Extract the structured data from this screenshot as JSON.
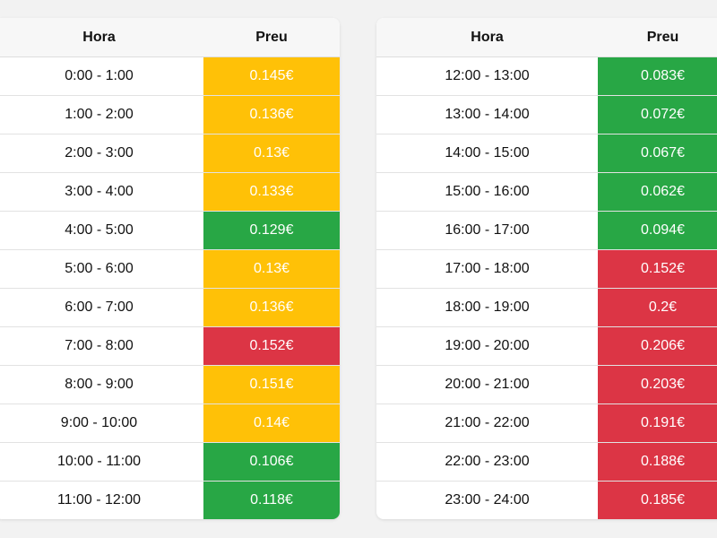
{
  "colors": {
    "low": "#28a745",
    "mid": "#ffc107",
    "high": "#dc3545"
  },
  "tables": [
    {
      "headers": {
        "hour": "Hora",
        "price": "Preu"
      },
      "rows": [
        {
          "hour": "0:00 - 1:00",
          "price": "0.145€",
          "level": "mid"
        },
        {
          "hour": "1:00 - 2:00",
          "price": "0.136€",
          "level": "mid"
        },
        {
          "hour": "2:00 - 3:00",
          "price": "0.13€",
          "level": "mid"
        },
        {
          "hour": "3:00 - 4:00",
          "price": "0.133€",
          "level": "mid"
        },
        {
          "hour": "4:00 - 5:00",
          "price": "0.129€",
          "level": "low"
        },
        {
          "hour": "5:00 - 6:00",
          "price": "0.13€",
          "level": "mid"
        },
        {
          "hour": "6:00 - 7:00",
          "price": "0.136€",
          "level": "mid"
        },
        {
          "hour": "7:00 - 8:00",
          "price": "0.152€",
          "level": "high"
        },
        {
          "hour": "8:00 - 9:00",
          "price": "0.151€",
          "level": "mid"
        },
        {
          "hour": "9:00 - 10:00",
          "price": "0.14€",
          "level": "mid"
        },
        {
          "hour": "10:00 - 11:00",
          "price": "0.106€",
          "level": "low"
        },
        {
          "hour": "11:00 - 12:00",
          "price": "0.118€",
          "level": "low"
        }
      ]
    },
    {
      "headers": {
        "hour": "Hora",
        "price": "Preu"
      },
      "rows": [
        {
          "hour": "12:00 - 13:00",
          "price": "0.083€",
          "level": "low"
        },
        {
          "hour": "13:00 - 14:00",
          "price": "0.072€",
          "level": "low"
        },
        {
          "hour": "14:00 - 15:00",
          "price": "0.067€",
          "level": "low"
        },
        {
          "hour": "15:00 - 16:00",
          "price": "0.062€",
          "level": "low"
        },
        {
          "hour": "16:00 - 17:00",
          "price": "0.094€",
          "level": "low"
        },
        {
          "hour": "17:00 - 18:00",
          "price": "0.152€",
          "level": "high"
        },
        {
          "hour": "18:00 - 19:00",
          "price": "0.2€",
          "level": "high"
        },
        {
          "hour": "19:00 - 20:00",
          "price": "0.206€",
          "level": "high"
        },
        {
          "hour": "20:00 - 21:00",
          "price": "0.203€",
          "level": "high"
        },
        {
          "hour": "21:00 - 22:00",
          "price": "0.191€",
          "level": "high"
        },
        {
          "hour": "22:00 - 23:00",
          "price": "0.188€",
          "level": "high"
        },
        {
          "hour": "23:00 - 24:00",
          "price": "0.185€",
          "level": "high"
        }
      ]
    }
  ]
}
